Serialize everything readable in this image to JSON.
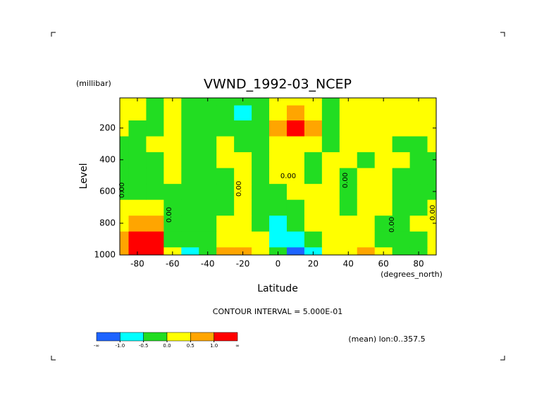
{
  "chart_data": {
    "type": "contour",
    "title": "VWND_1992-03_NCEP",
    "y_units": "(millibar)",
    "y_label": "Level",
    "x_units": "(degrees_north)",
    "x_label": "Latitude",
    "contour_note": "CONTOUR INTERVAL = 5.000E-01",
    "footnote": "(mean) lon:0..357.5",
    "x": [
      -90,
      -80,
      -70,
      -60,
      -50,
      -40,
      -30,
      -20,
      -10,
      0,
      10,
      20,
      30,
      40,
      50,
      60,
      70,
      80,
      90
    ],
    "y": [
      1000,
      900,
      800,
      700,
      600,
      500,
      400,
      300,
      200,
      100,
      10
    ],
    "z": [
      [
        0.6,
        1.5,
        1.5,
        0.2,
        -0.8,
        -0.2,
        0.7,
        0.7,
        0.3,
        -0.3,
        -1.5,
        -0.7,
        0.2,
        0.2,
        0.6,
        0.2,
        -0.2,
        -0.2,
        0.1
      ],
      [
        0.7,
        1.2,
        1.2,
        -0.2,
        -0.3,
        -0.2,
        0.3,
        0.3,
        0.2,
        -0.6,
        -0.6,
        -0.2,
        0.2,
        0.3,
        0.3,
        -0.1,
        -0.2,
        -0.2,
        0.1
      ],
      [
        0.3,
        0.6,
        0.8,
        -0.2,
        -0.3,
        -0.2,
        0.2,
        0.2,
        -0.2,
        -0.6,
        -0.2,
        0.2,
        0.3,
        0.3,
        0.2,
        -0.1,
        -0.2,
        0.2,
        0.1
      ],
      [
        0.2,
        0.3,
        0.3,
        -0.2,
        -0.3,
        -0.3,
        -0.2,
        0.1,
        -0.2,
        -0.3,
        -0.2,
        0.2,
        0.2,
        -0.1,
        0.2,
        0.1,
        -0.2,
        -0.1,
        0.1
      ],
      [
        -0.1,
        -0.2,
        -0.3,
        -0.2,
        -0.3,
        -0.3,
        -0.2,
        0.1,
        -0.2,
        -0.2,
        0.1,
        0.2,
        0.2,
        -0.1,
        0.2,
        0.2,
        -0.2,
        -0.2,
        -0.1
      ],
      [
        -0.2,
        -0.2,
        -0.2,
        0.1,
        -0.2,
        -0.2,
        -0.2,
        0.1,
        -0.2,
        0.1,
        0.2,
        -0.1,
        0.2,
        -0.1,
        0.2,
        0.2,
        -0.2,
        -0.2,
        -0.2
      ],
      [
        -0.2,
        -0.2,
        -0.2,
        0.1,
        -0.2,
        -0.2,
        0.1,
        0.1,
        -0.1,
        0.1,
        0.1,
        -0.1,
        0.2,
        0.2,
        -0.1,
        0.2,
        0.2,
        -0.2,
        -0.2
      ],
      [
        -0.2,
        -0.2,
        0.1,
        0.1,
        -0.2,
        -0.2,
        0.1,
        -0.1,
        -0.2,
        0.2,
        0.3,
        0.2,
        -0.1,
        0.2,
        0.1,
        0.2,
        -0.2,
        -0.2,
        0.1
      ],
      [
        0.1,
        -0.2,
        -0.2,
        0.1,
        -0.2,
        -0.2,
        -0.2,
        -0.2,
        -0.2,
        0.6,
        1.2,
        0.6,
        -0.2,
        0.2,
        0.2,
        0.2,
        0.2,
        0.2,
        0.2
      ],
      [
        0.2,
        0.2,
        -0.2,
        0.1,
        -0.2,
        -0.2,
        -0.2,
        -0.6,
        -0.2,
        0.3,
        0.6,
        0.3,
        -0.2,
        0.2,
        0.2,
        0.2,
        0.2,
        0.2,
        0.2
      ],
      [
        0.2,
        0.2,
        -0.2,
        0.1,
        -0.2,
        -0.2,
        -0.2,
        -0.2,
        -0.2,
        0.2,
        0.3,
        0.2,
        -0.2,
        0.2,
        0.2,
        0.2,
        0.2,
        0.2,
        0.2
      ]
    ],
    "xlim": [
      -90,
      90
    ],
    "xticks": [
      -80,
      -60,
      -40,
      -20,
      0,
      20,
      40,
      60,
      80
    ],
    "ylim": [
      1000,
      10
    ],
    "yticks": [
      200,
      400,
      600,
      800,
      1000
    ],
    "contour_labels": [
      "0.00",
      "0.00",
      "0.00",
      "0.00",
      "0.00",
      "0.00",
      "0.00"
    ],
    "colorbar": {
      "colors": [
        "#1e64ff",
        "#00ffff",
        "#22dd22",
        "#ffff00",
        "#ffa500",
        "#ff0000"
      ],
      "ticks": [
        {
          "value": -1,
          "label": "-1.0"
        },
        {
          "value": -0.5,
          "label": "-0.5"
        },
        {
          "value": 0,
          "label": "0.0"
        },
        {
          "value": 0.5,
          "label": "0.5"
        },
        {
          "value": 1,
          "label": "1.0"
        }
      ],
      "ends": [
        "-∞",
        "∞"
      ]
    }
  }
}
